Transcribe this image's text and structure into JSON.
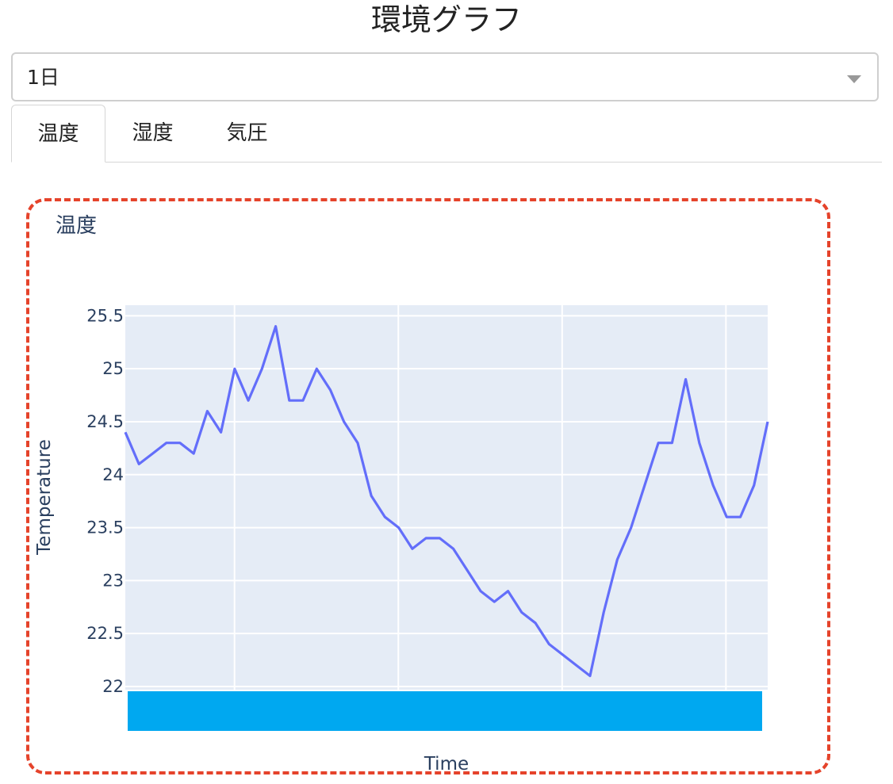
{
  "page": {
    "title": "環境グラフ"
  },
  "period_select": {
    "value": "1日"
  },
  "tabs": [
    {
      "label": "温度",
      "active": true
    },
    {
      "label": "湿度",
      "active": false
    },
    {
      "label": "気圧",
      "active": false
    }
  ],
  "panel": {
    "title": "温度"
  },
  "colors": {
    "line": "#636efa",
    "plot_bg": "#e5ecf6",
    "panel_border": "#e5432b",
    "range_slider": "#00a8f0"
  },
  "chart_data": {
    "type": "line",
    "title": "温度",
    "xlabel": "Time",
    "ylabel": "Temperature",
    "ylim": [
      21.97,
      25.6
    ],
    "yticks": [
      "25.5",
      "25",
      "24.5",
      "24",
      "23.5",
      "23",
      "22.5",
      "22"
    ],
    "grid": true,
    "series": [
      {
        "values": [
          24.4,
          24.1,
          24.2,
          24.3,
          24.3,
          24.2,
          24.6,
          24.4,
          25.0,
          24.7,
          25.0,
          25.4,
          24.7,
          24.7,
          25.0,
          24.8,
          24.5,
          24.3,
          23.8,
          23.6,
          23.5,
          23.3,
          23.4,
          23.4,
          23.3,
          23.1,
          22.9,
          22.8,
          22.9,
          22.7,
          22.6,
          22.4,
          22.3,
          22.2,
          22.1,
          22.7,
          23.2,
          23.5,
          23.9,
          24.3,
          24.3,
          24.9,
          24.3,
          23.9,
          23.6,
          23.6,
          23.9,
          24.5
        ]
      }
    ]
  }
}
